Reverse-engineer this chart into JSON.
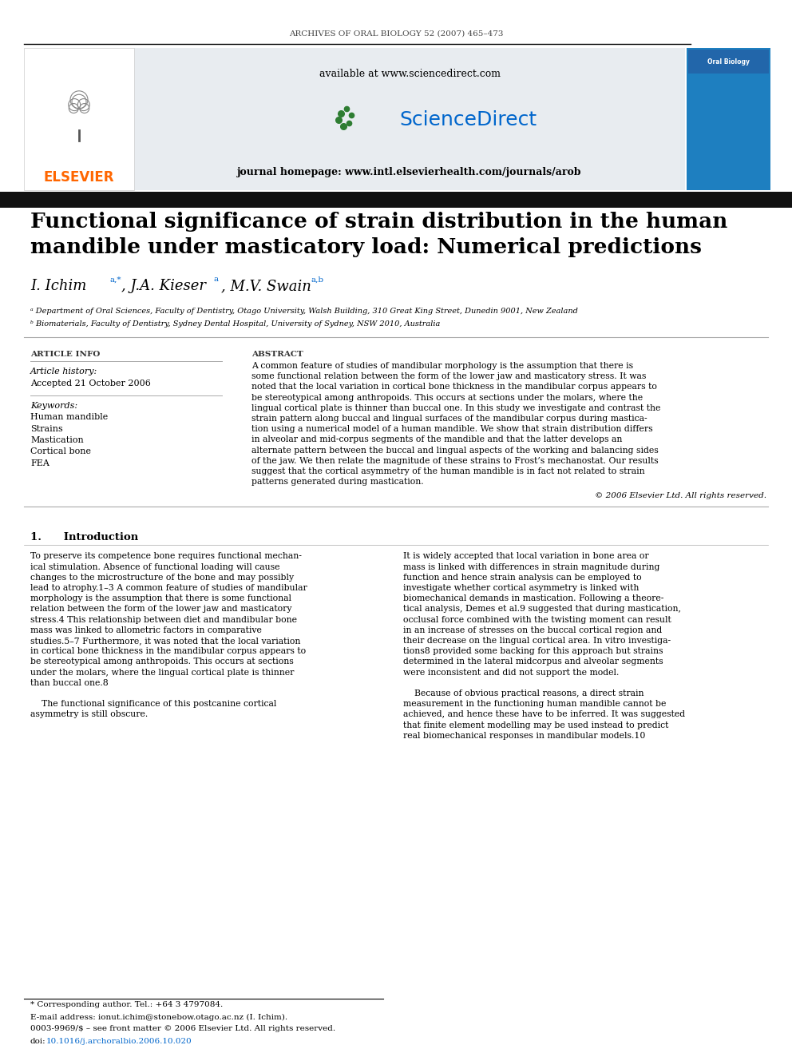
{
  "journal_header": "ARCHIVES OF ORAL BIOLOGY 52 (2007) 465–473",
  "available_text": "available at www.sciencedirect.com",
  "journal_homepage": "journal homepage: www.intl.elsevierhealth.com/journals/arob",
  "title_line1": "Functional significance of strain distribution in the human",
  "title_line2": "mandible under masticatory load: Numerical predictions",
  "affil_a": "ᵃ Department of Oral Sciences, Faculty of Dentistry, Otago University, Walsh Building, 310 Great King Street, Dunedin 9001, New Zealand",
  "affil_b": "ᵇ Biomaterials, Faculty of Dentistry, Sydney Dental Hospital, University of Sydney, NSW 2010, Australia",
  "article_info_header": "ARTICLE INFO",
  "article_history_header": "Article history:",
  "accepted_date": "Accepted 21 October 2006",
  "keywords_header": "Keywords:",
  "keywords": [
    "Human mandible",
    "Strains",
    "Mastication",
    "Cortical bone",
    "FEA"
  ],
  "abstract_header": "ABSTRACT",
  "abstract_lines": [
    "A common feature of studies of mandibular morphology is the assumption that there is",
    "some functional relation between the form of the lower jaw and masticatory stress. It was",
    "noted that the local variation in cortical bone thickness in the mandibular corpus appears to",
    "be stereotypical among anthropoids. This occurs at sections under the molars, where the",
    "lingual cortical plate is thinner than buccal one. In this study we investigate and contrast the",
    "strain pattern along buccal and lingual surfaces of the mandibular corpus during mastica-",
    "tion using a numerical model of a human mandible. We show that strain distribution differs",
    "in alveolar and mid-corpus segments of the mandible and that the latter develops an",
    "alternate pattern between the buccal and lingual aspects of the working and balancing sides",
    "of the jaw. We then relate the magnitude of these strains to Frost’s mechanostat. Our results",
    "suggest that the cortical asymmetry of the human mandible is in fact not related to strain",
    "patterns generated during mastication."
  ],
  "copyright": "© 2006 Elsevier Ltd. All rights reserved.",
  "intro_header": "1.      Introduction",
  "intro_left_lines": [
    "To preserve its competence bone requires functional mechan-",
    "ical stimulation. Absence of functional loading will cause",
    "changes to the microstructure of the bone and may possibly",
    "lead to atrophy.1–3 A common feature of studies of mandibular",
    "morphology is the assumption that there is some functional",
    "relation between the form of the lower jaw and masticatory",
    "stress.4 This relationship between diet and mandibular bone",
    "mass was linked to allometric factors in comparative",
    "studies.5–7 Furthermore, it was noted that the local variation",
    "in cortical bone thickness in the mandibular corpus appears to",
    "be stereotypical among anthropoids. This occurs at sections",
    "under the molars, where the lingual cortical plate is thinner",
    "than buccal one.8",
    "",
    "    The functional significance of this postcanine cortical",
    "asymmetry is still obscure."
  ],
  "intro_right_lines": [
    "It is widely accepted that local variation in bone area or",
    "mass is linked with differences in strain magnitude during",
    "function and hence strain analysis can be employed to",
    "investigate whether cortical asymmetry is linked with",
    "biomechanical demands in mastication. Following a theore-",
    "tical analysis, Demes et al.9 suggested that during mastication,",
    "occlusal force combined with the twisting moment can result",
    "in an increase of stresses on the buccal cortical region and",
    "their decrease on the lingual cortical area. In vitro investiga-",
    "tions8 provided some backing for this approach but strains",
    "determined in the lateral midcorpus and alveolar segments",
    "were inconsistent and did not support the model.",
    "",
    "    Because of obvious practical reasons, a direct strain",
    "measurement in the functioning human mandible cannot be",
    "achieved, and hence these have to be inferred. It was suggested",
    "that finite element modelling may be used instead to predict",
    "real biomechanical responses in mandibular models.10"
  ],
  "footnote_corresponding": "* Corresponding author. Tel.: +64 3 4797084.",
  "footnote_email": "E-mail address: ionut.ichim@stonebow.otago.ac.nz (I. Ichim).",
  "footnote_issn": "0003-9969/$ – see front matter © 2006 Elsevier Ltd. All rights reserved.",
  "footnote_doi_plain": "doi:",
  "footnote_doi_link": "10.1016/j.archoralbio.2006.10.020",
  "elsevier_color": "#FF6600",
  "sciencedirect_bg": "#e8ecf0",
  "blue_color": "#0066cc",
  "dark_bar_color": "#111111"
}
